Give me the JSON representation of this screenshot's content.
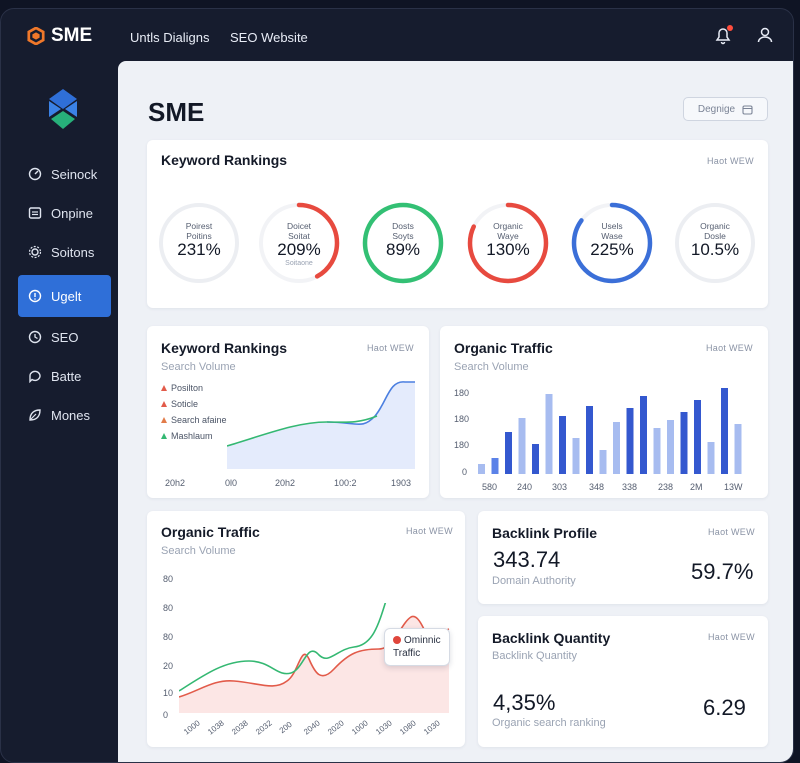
{
  "brand": {
    "name": "SME",
    "accent": "#f0782a"
  },
  "topnav": {
    "links": [
      "Untls Dialigns",
      "SEO Website"
    ],
    "icons": [
      "notification-icon",
      "user-icon"
    ]
  },
  "sidebar": {
    "active_color": "#2f6fd8",
    "items": [
      {
        "label": "Seinock",
        "icon": "gauge-icon"
      },
      {
        "label": "Onpine",
        "icon": "document-icon"
      },
      {
        "label": "Soitons",
        "icon": "gear-icon"
      },
      {
        "label": "Ugelt",
        "icon": "alert-icon",
        "active": true
      },
      {
        "label": "SEO",
        "icon": "clock-icon"
      },
      {
        "label": "Batte",
        "icon": "chat-icon"
      },
      {
        "label": "Mones",
        "icon": "leaf-icon"
      }
    ]
  },
  "page": {
    "title": "SME",
    "button_label": "Degnige",
    "button_icon": "calendar-icon"
  },
  "rankings": {
    "title": "Keyword Rankings",
    "link": "Haot WEW",
    "gauges": [
      {
        "label": "Poirest\nPoitins",
        "value": "231%",
        "foot": "",
        "color": "#e6e9ef",
        "progress": 0
      },
      {
        "label": "Doicet\nSoitat",
        "value": "209%",
        "foot": "Soitaone",
        "color": "#e74a3f",
        "progress": 0.42
      },
      {
        "label": "Dosts\nSoyts",
        "value": "89%",
        "foot": "",
        "color": "#33c074",
        "progress": 1
      },
      {
        "label": "Organic\nWaye",
        "value": "130%",
        "foot": "",
        "color": "#e74a3f",
        "progress": 0.82
      },
      {
        "label": "Usels\nWase",
        "value": "225%",
        "foot": "",
        "color": "#3b6fd8",
        "progress": 0.85
      },
      {
        "label": "Organic\nDosle",
        "value": "10.5%",
        "foot": "",
        "color": "#e6e9ef",
        "progress": 0
      }
    ]
  },
  "kw_chart": {
    "title": "Keyword Rankings",
    "sub": "Search Volume",
    "link": "Haot WEW",
    "legend": [
      {
        "label": "Posilton",
        "color": "#e25b4a"
      },
      {
        "label": "Soticle",
        "color": "#e25b4a"
      },
      {
        "label": "Search afaine",
        "color": "#e27c4a"
      },
      {
        "label": "Mashlaum",
        "color": "#34b872"
      }
    ],
    "x_labels": [
      "20h2",
      "0l0",
      "20h2",
      "100:2",
      "1903"
    ]
  },
  "traffic_bars": {
    "title": "Organic Traffic",
    "sub": "Search Volume",
    "link": "Haot WEW",
    "y_labels": [
      "180",
      "180",
      "180",
      "0"
    ],
    "x_labels": [
      "580",
      "240",
      "303",
      "348",
      "338",
      "238",
      "2M",
      "13W"
    ]
  },
  "traffic_lines": {
    "title": "Organic Traffic",
    "sub": "Search Volume",
    "link": "Haot WEW",
    "y_labels": [
      "80",
      "80",
      "80",
      "20",
      "10",
      "0"
    ],
    "x_labels": [
      "1000",
      "1038",
      "2038",
      "2032",
      "200",
      "2040",
      "2020",
      "1000",
      "1030",
      "1080",
      "1030"
    ],
    "tooltip": "Ominnic\nTraffic"
  },
  "backlink_profile": {
    "title": "Backlink Profile",
    "link": "Haot WEW",
    "value": "343.74",
    "sub": "Domain Authority",
    "side_value": "59.7%"
  },
  "backlink_quantity": {
    "title": "Backlink Quantity",
    "sub": "Backlink Quantity",
    "link": "Haot WEW",
    "value": "4,35%",
    "value_sub": "Organic search ranking",
    "side_value": "6.29"
  }
}
